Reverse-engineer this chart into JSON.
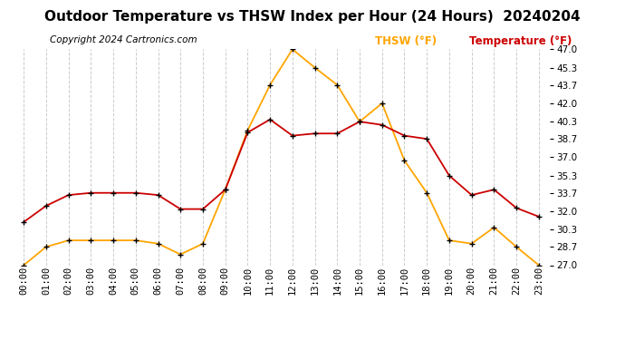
{
  "title": "Outdoor Temperature vs THSW Index per Hour (24 Hours)  20240204",
  "copyright": "Copyright 2024 Cartronics.com",
  "legend_thsw": "THSW (°F)",
  "legend_temp": "Temperature (°F)",
  "hours": [
    "00:00",
    "01:00",
    "02:00",
    "03:00",
    "04:00",
    "05:00",
    "06:00",
    "07:00",
    "08:00",
    "09:00",
    "10:00",
    "11:00",
    "12:00",
    "13:00",
    "14:00",
    "15:00",
    "16:00",
    "17:00",
    "18:00",
    "19:00",
    "20:00",
    "21:00",
    "22:00",
    "23:00"
  ],
  "thsw": [
    27.0,
    28.7,
    29.3,
    29.3,
    29.3,
    29.3,
    29.0,
    28.0,
    29.0,
    34.0,
    39.5,
    43.7,
    47.0,
    45.3,
    43.7,
    40.3,
    42.0,
    36.7,
    33.7,
    29.3,
    29.0,
    30.5,
    28.7,
    27.0
  ],
  "temperature": [
    31.0,
    32.5,
    33.5,
    33.7,
    33.7,
    33.7,
    33.5,
    32.2,
    32.2,
    34.0,
    39.3,
    40.5,
    39.0,
    39.2,
    39.2,
    40.3,
    40.0,
    39.0,
    38.7,
    35.3,
    33.5,
    34.0,
    32.3,
    31.5
  ],
  "ylim": [
    27.0,
    47.0
  ],
  "yticks": [
    27.0,
    28.7,
    30.3,
    32.0,
    33.7,
    35.3,
    37.0,
    38.7,
    40.3,
    42.0,
    43.7,
    45.3,
    47.0
  ],
  "thsw_color": "#FFA500",
  "temp_color": "#CC0000",
  "marker_color": "#000000",
  "plot_bg_color": "#ffffff",
  "fig_bg_color": "#ffffff",
  "grid_color": "#cccccc",
  "title_fontsize": 11,
  "copyright_fontsize": 7.5,
  "legend_fontsize": 8.5,
  "tick_fontsize": 7.5
}
